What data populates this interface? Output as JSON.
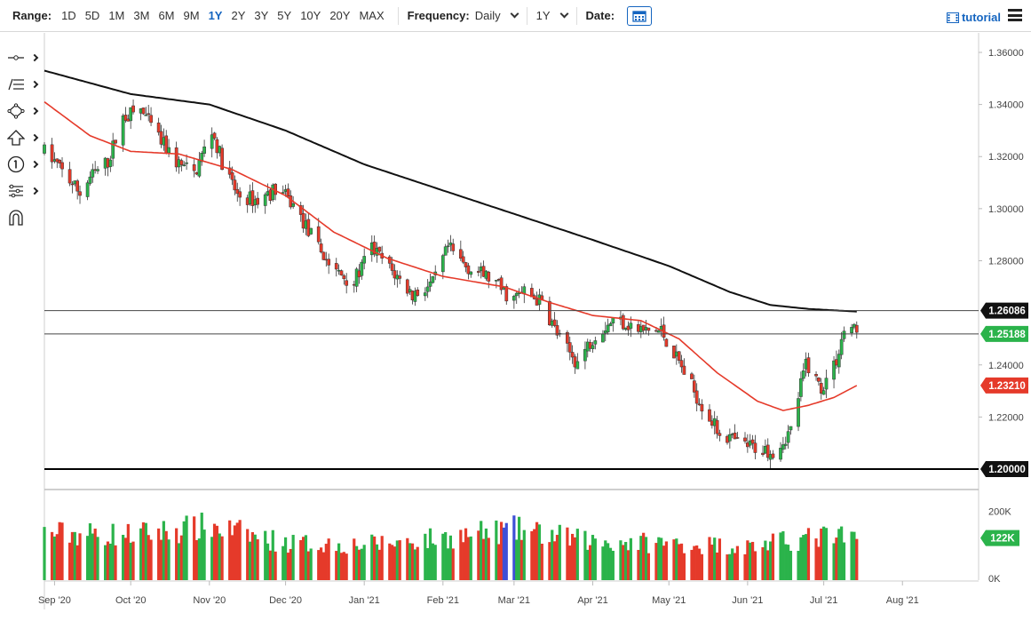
{
  "toolbar": {
    "range_label": "Range:",
    "ranges": [
      "1D",
      "5D",
      "1M",
      "3M",
      "6M",
      "9M",
      "1Y",
      "2Y",
      "3Y",
      "5Y",
      "10Y",
      "20Y",
      "MAX"
    ],
    "active_range": "1Y",
    "frequency_label": "Frequency:",
    "frequency_value": "Daily",
    "period_value": "1Y",
    "date_label": "Date:",
    "tutorial_label": "tutorial"
  },
  "left_tools": [
    "crosshair-icon",
    "fibonacci-icon",
    "shapes-icon",
    "arrow-up-icon",
    "number-marker-icon",
    "measure-icon",
    "magnet-icon"
  ],
  "colors": {
    "up": "#2bb34b",
    "down": "#e53a2a",
    "sma_fast": "#e53a2a",
    "sma_slow": "#111111",
    "accent": "#1565c0",
    "volume_special": "#3f4fd6"
  },
  "chart_data": {
    "type": "candlestick",
    "y_ticks": [
      "1.36000",
      "1.34000",
      "1.32000",
      "1.30000",
      "1.28000",
      "1.24000",
      "1.22000"
    ],
    "ylim": [
      1.1925,
      1.3675
    ],
    "x_ticks": [
      "Sep '20",
      "Oct '20",
      "Nov '20",
      "Dec '20",
      "Jan '21",
      "Feb '21",
      "Mar '21",
      "Apr '21",
      "May '21",
      "Jun '21",
      "Jul '21",
      "Aug '21"
    ],
    "x_range": [
      "2020-08-28",
      "2021-08-31"
    ],
    "horizontal_levels": [
      {
        "value": 1.26086,
        "label": "1.26086",
        "style": "thin"
      },
      {
        "value": 1.25188,
        "label": "1.25188",
        "style": "thin",
        "badge": "last"
      },
      {
        "value": 1.2,
        "label": "1.20000",
        "style": "thick"
      }
    ],
    "sma_fast_last": "1.23210",
    "price_path": [
      [
        "2020-08-28",
        1.322
      ],
      [
        "2020-09-01",
        1.318
      ],
      [
        "2020-09-11",
        1.306
      ],
      [
        "2020-09-15",
        1.312
      ],
      [
        "2020-09-22",
        1.318
      ],
      [
        "2020-09-28",
        1.335
      ],
      [
        "2020-10-05",
        1.338
      ],
      [
        "2020-10-12",
        1.327
      ],
      [
        "2020-10-19",
        1.318
      ],
      [
        "2020-10-26",
        1.313
      ],
      [
        "2020-11-02",
        1.33
      ],
      [
        "2020-11-06",
        1.318
      ],
      [
        "2020-11-12",
        1.305
      ],
      [
        "2020-11-20",
        1.303
      ],
      [
        "2020-11-28",
        1.308
      ],
      [
        "2020-12-05",
        1.3
      ],
      [
        "2020-12-12",
        1.288
      ],
      [
        "2020-12-20",
        1.276
      ],
      [
        "2020-12-28",
        1.272
      ],
      [
        "2021-01-04",
        1.285
      ],
      [
        "2021-01-12",
        1.276
      ],
      [
        "2021-01-20",
        1.267
      ],
      [
        "2021-01-28",
        1.271
      ],
      [
        "2021-02-03",
        1.285
      ],
      [
        "2021-02-10",
        1.278
      ],
      [
        "2021-02-20",
        1.273
      ],
      [
        "2021-02-28",
        1.265
      ],
      [
        "2021-03-05",
        1.268
      ],
      [
        "2021-03-12",
        1.264
      ],
      [
        "2021-03-20",
        1.248
      ],
      [
        "2021-03-26",
        1.241
      ],
      [
        "2021-04-02",
        1.252
      ],
      [
        "2021-04-10",
        1.258
      ],
      [
        "2021-04-20",
        1.253
      ],
      [
        "2021-04-28",
        1.253
      ],
      [
        "2021-05-05",
        1.241
      ],
      [
        "2021-05-12",
        1.228
      ],
      [
        "2021-05-20",
        1.215
      ],
      [
        "2021-05-28",
        1.21
      ],
      [
        "2021-06-05",
        1.208
      ],
      [
        "2021-06-12",
        1.207
      ],
      [
        "2021-06-18",
        1.215
      ],
      [
        "2021-06-24",
        1.241
      ],
      [
        "2021-06-30",
        1.231
      ],
      [
        "2021-07-06",
        1.242
      ],
      [
        "2021-07-10",
        1.257
      ],
      [
        "2021-07-14",
        1.252
      ]
    ],
    "sma_fast": [
      [
        "2020-08-28",
        1.341
      ],
      [
        "2020-09-15",
        1.328
      ],
      [
        "2020-10-01",
        1.322
      ],
      [
        "2020-10-20",
        1.321
      ],
      [
        "2020-11-10",
        1.315
      ],
      [
        "2020-12-01",
        1.305
      ],
      [
        "2020-12-20",
        1.291
      ],
      [
        "2021-01-10",
        1.281
      ],
      [
        "2021-02-01",
        1.274
      ],
      [
        "2021-02-25",
        1.27
      ],
      [
        "2021-03-15",
        1.264
      ],
      [
        "2021-04-01",
        1.259
      ],
      [
        "2021-04-20",
        1.257
      ],
      [
        "2021-05-05",
        1.25
      ],
      [
        "2021-05-20",
        1.237
      ],
      [
        "2021-06-05",
        1.226
      ],
      [
        "2021-06-15",
        1.2225
      ],
      [
        "2021-06-25",
        1.2245
      ],
      [
        "2021-07-05",
        1.2275
      ],
      [
        "2021-07-14",
        1.2321
      ]
    ],
    "sma_slow": [
      [
        "2020-08-28",
        1.353
      ],
      [
        "2020-10-01",
        1.344
      ],
      [
        "2020-11-01",
        1.34
      ],
      [
        "2020-12-01",
        1.33
      ],
      [
        "2021-01-01",
        1.317
      ],
      [
        "2021-02-01",
        1.307
      ],
      [
        "2021-03-01",
        1.298
      ],
      [
        "2021-04-01",
        1.288
      ],
      [
        "2021-05-01",
        1.278
      ],
      [
        "2021-05-25",
        1.268
      ],
      [
        "2021-06-10",
        1.263
      ],
      [
        "2021-06-25",
        1.2615
      ],
      [
        "2021-07-14",
        1.2605
      ]
    ],
    "volume_ticks": [
      "200K",
      "0K"
    ],
    "volume_ylim": [
      0,
      260000
    ],
    "volume_last": "122K",
    "volume_path": [
      [
        "2020-08-28",
        140000
      ],
      [
        "2020-10-01",
        135000
      ],
      [
        "2020-11-02",
        160000
      ],
      [
        "2020-12-01",
        110000
      ],
      [
        "2021-01-01",
        105000
      ],
      [
        "2021-02-01",
        125000
      ],
      [
        "2021-03-01",
        150000
      ],
      [
        "2021-04-01",
        115000
      ],
      [
        "2021-05-01",
        110000
      ],
      [
        "2021-06-01",
        100000
      ],
      [
        "2021-07-01",
        130000
      ],
      [
        "2021-07-14",
        122000
      ]
    ]
  }
}
